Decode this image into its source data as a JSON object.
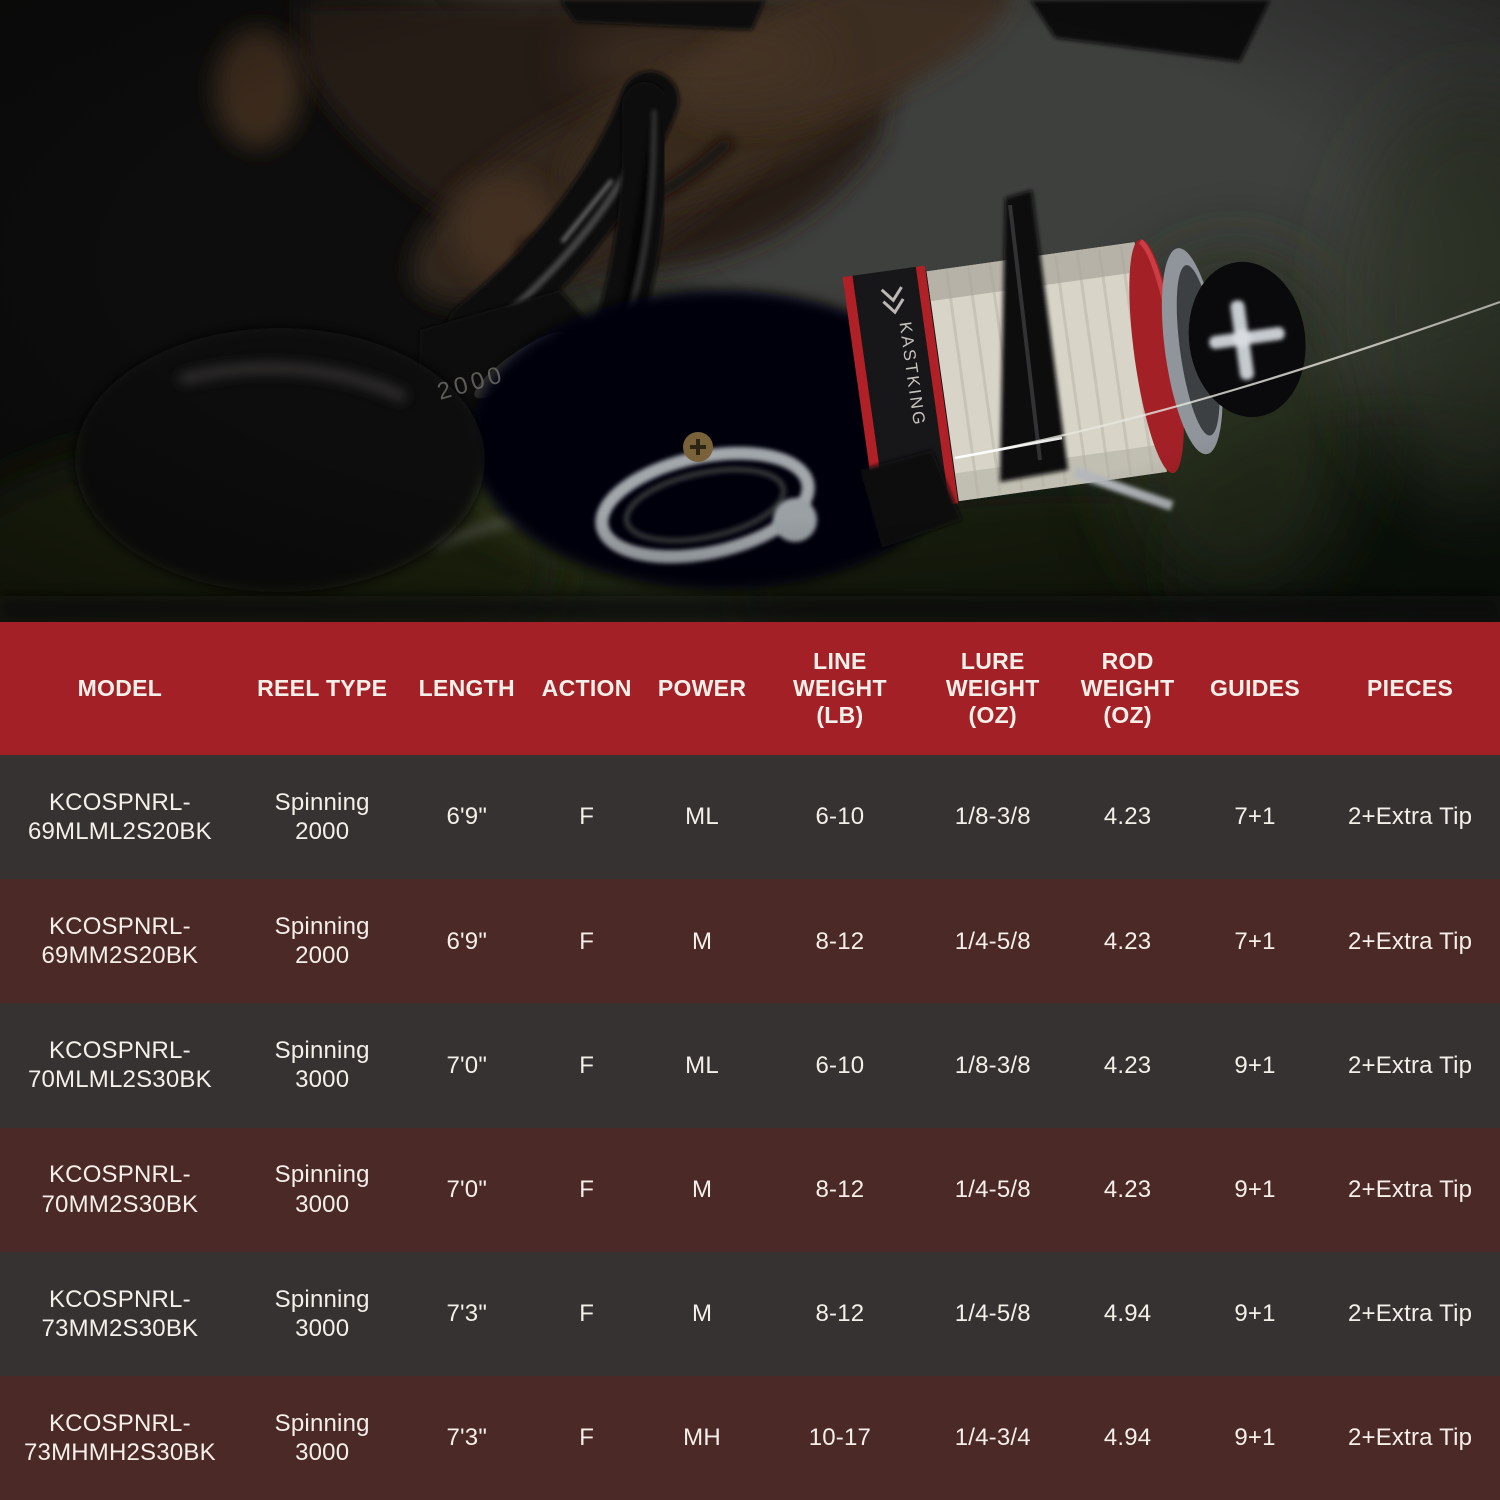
{
  "photo": {
    "reel_size_label": "2000",
    "spool_brand_label": "KASTKING"
  },
  "table": {
    "accent_color": "#a32026",
    "row_dark_color": "#353231",
    "row_maroon_color": "#4a2927",
    "text_color": "#f4efe9",
    "columns": [
      "MODEL",
      "REEL TYPE",
      "LENGTH",
      "ACTION",
      "POWER",
      "LINE\nWEIGHT\n(LB)",
      "LURE\nWEIGHT\n(OZ)",
      "ROD\nWEIGHT\n(OZ)",
      "GUIDES",
      "PIECES"
    ],
    "rows": [
      [
        "KCOSPNRL-\n69MLML2S20BK",
        "Spinning\n2000",
        "6'9\"",
        "F",
        "ML",
        "6-10",
        "1/8-3/8",
        "4.23",
        "7+1",
        "2+Extra Tip"
      ],
      [
        "KCOSPNRL-\n69MM2S20BK",
        "Spinning\n2000",
        "6'9\"",
        "F",
        "M",
        "8-12",
        "1/4-5/8",
        "4.23",
        "7+1",
        "2+Extra Tip"
      ],
      [
        "KCOSPNRL-\n70MLML2S30BK",
        "Spinning\n3000",
        "7'0\"",
        "F",
        "ML",
        "6-10",
        "1/8-3/8",
        "4.23",
        "9+1",
        "2+Extra Tip"
      ],
      [
        "KCOSPNRL-\n70MM2S30BK",
        "Spinning\n3000",
        "7'0\"",
        "F",
        "M",
        "8-12",
        "1/4-5/8",
        "4.23",
        "9+1",
        "2+Extra Tip"
      ],
      [
        "KCOSPNRL-\n73MM2S30BK",
        "Spinning\n3000",
        "7'3\"",
        "F",
        "M",
        "8-12",
        "1/4-5/8",
        "4.94",
        "9+1",
        "2+Extra Tip"
      ],
      [
        "KCOSPNRL-\n73MHMH2S30BK",
        "Spinning\n3000",
        "7'3\"",
        "F",
        "MH",
        "10-17",
        "1/4-3/4",
        "4.94",
        "9+1",
        "2+Extra Tip"
      ]
    ]
  }
}
